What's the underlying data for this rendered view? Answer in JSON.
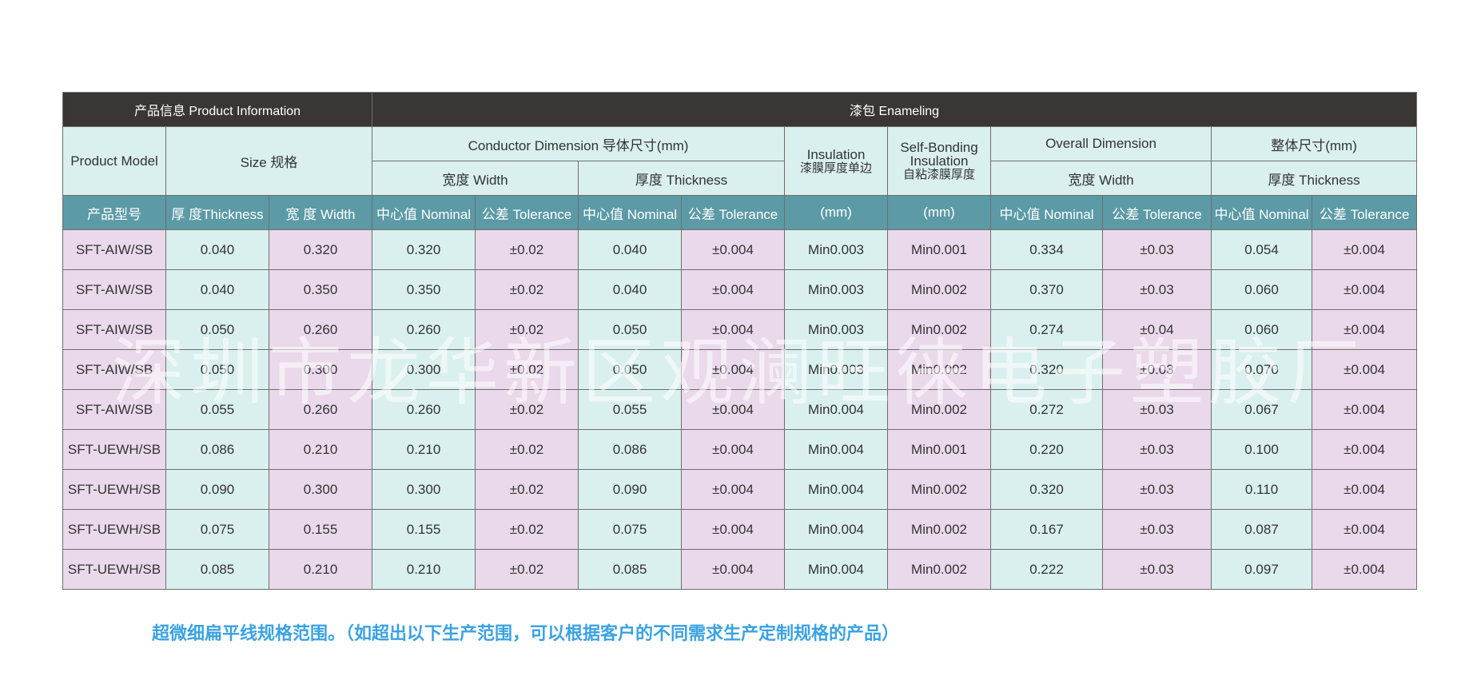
{
  "header": {
    "product_info": "产品信息   Product Information",
    "enameling": "漆包 Enameling"
  },
  "subheader": {
    "product_model": "Product Model",
    "size": "Size 规格",
    "conductor_dimension": "Conductor Dimension 导体尺寸(mm)",
    "insulation_line1": "Insulation",
    "insulation_line2": "漆膜厚度单边",
    "self_bonding_line1": "Self-Bonding",
    "self_bonding_line2": "Insulation",
    "self_bonding_line3": "自粘漆膜厚度",
    "overall_dimension": "Overall Dimension",
    "overall_size": "整体尺寸(mm)",
    "cond_width": "宽度   Width",
    "cond_thickness": "厚度  Thickness",
    "overall_width": "宽度 Width",
    "overall_thickness": "厚度 Thickness"
  },
  "columns": [
    "产品型号",
    "厚 度Thickness",
    "宽 度 Width",
    "中心值 Nominal",
    "公差 Tolerance",
    "中心值 Nominal",
    "公差 Tolerance",
    "(mm)",
    "(mm)",
    "中心值 Nominal",
    "公差 Tolerance",
    "中心值 Nominal",
    "公差 Tolerance"
  ],
  "rows": [
    [
      "SFT-AIW/SB",
      "0.040",
      "0.320",
      "0.320",
      "±0.02",
      "0.040",
      "±0.004",
      "Min0.003",
      "Min0.001",
      "0.334",
      "±0.03",
      "0.054",
      "±0.004"
    ],
    [
      "SFT-AIW/SB",
      "0.040",
      "0.350",
      "0.350",
      "±0.02",
      "0.040",
      "±0.004",
      "Min0.003",
      "Min0.002",
      "0.370",
      "±0.03",
      "0.060",
      "±0.004"
    ],
    [
      "SFT-AIW/SB",
      "0.050",
      "0.260",
      "0.260",
      "±0.02",
      "0.050",
      "±0.004",
      "Min0.003",
      "Min0.002",
      "0.274",
      "±0.04",
      "0.060",
      "±0.004"
    ],
    [
      "SFT-AIW/SB",
      "0.050",
      "0.300",
      "0.300",
      "±0.02",
      "0.050",
      "±0.004",
      "Min0.003",
      "Min0.002",
      "0.320",
      "±0.03",
      "0.070",
      "±0.004"
    ],
    [
      "SFT-AIW/SB",
      "0.055",
      "0.260",
      "0.260",
      "±0.02",
      "0.055",
      "±0.004",
      "Min0.004",
      "Min0.002",
      "0.272",
      "±0.03",
      "0.067",
      "±0.004"
    ],
    [
      "SFT-UEWH/SB",
      "0.086",
      "0.210",
      "0.210",
      "±0.02",
      "0.086",
      "±0.004",
      "Min0.004",
      "Min0.001",
      "0.220",
      "±0.03",
      "0.100",
      "±0.004"
    ],
    [
      "SFT-UEWH/SB",
      "0.090",
      "0.300",
      "0.300",
      "±0.02",
      "0.090",
      "±0.004",
      "Min0.004",
      "Min0.002",
      "0.320",
      "±0.03",
      "0.110",
      "±0.004"
    ],
    [
      "SFT-UEWH/SB",
      "0.075",
      "0.155",
      "0.155",
      "±0.02",
      "0.075",
      "±0.004",
      "Min0.004",
      "Min0.002",
      "0.167",
      "±0.03",
      "0.087",
      "±0.004"
    ],
    [
      "SFT-UEWH/SB",
      "0.085",
      "0.210",
      "0.210",
      "±0.02",
      "0.085",
      "±0.004",
      "Min0.004",
      "Min0.002",
      "0.222",
      "±0.03",
      "0.097",
      "±0.004"
    ]
  ],
  "note": "超微细扁平线规格范围。（如超出以下生产范围，可以根据客户的不同需求生产定制规格的产品）",
  "watermark": "深圳市龙华新区观澜旺徕电子塑胶厂",
  "colors": {
    "header_dark": "#3a3633",
    "header_teal": "#5c9aa6",
    "cell_teal": "#d9f0ee",
    "cell_pink": "#ead9ea",
    "note_blue": "#3aa2e2"
  }
}
